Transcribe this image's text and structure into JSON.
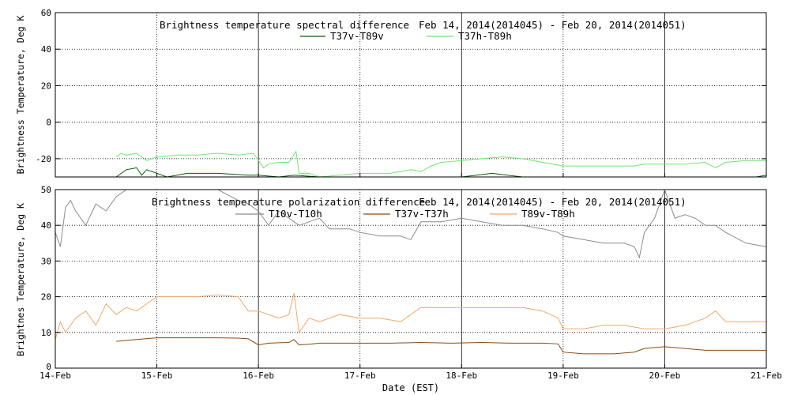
{
  "xlabel": "Date (EST)",
  "colors": {
    "T37v-T89v": "#0a5a0a",
    "T37h-T89h": "#6ee86e",
    "T10v-T10h": "#8c8c8c",
    "T37v-T37h": "#8a4a10",
    "T89v-T89h": "#f0a868"
  },
  "chart_data": [
    {
      "type": "line",
      "title": "Brightness temperature spectral difference",
      "date_range": "Feb 14, 2014(2014045) - Feb 20, 2014(2014051)",
      "ylabel": "Brightness Temperature, Deg K",
      "xlabel": "",
      "xlim": [
        14,
        21
      ],
      "ylim": [
        -30,
        60
      ],
      "grid": true,
      "legend": "top-center",
      "x_ticks": [
        "14-Feb",
        "15-Feb",
        "16-Feb",
        "17-Feb",
        "18-Feb",
        "19-Feb",
        "20-Feb",
        "21-Feb"
      ],
      "y_ticks": [
        -20,
        0,
        20,
        40,
        60
      ],
      "series": [
        {
          "name": "T37v-T89v",
          "x": [
            14.6,
            14.7,
            14.8,
            14.85,
            14.9,
            15.1,
            15.3,
            15.6,
            15.9,
            16.0,
            16.2,
            16.35,
            16.6,
            17.0,
            17.4,
            17.7,
            18.0,
            18.3,
            18.6,
            18.9,
            19.2,
            19.5,
            19.8,
            20.0,
            20.3,
            20.6,
            20.9,
            21.0
          ],
          "values": [
            -30,
            -26,
            -25,
            -29,
            -26,
            -30,
            -28,
            -28,
            -29,
            -29,
            -30,
            -29,
            -30,
            -30,
            -30,
            -30,
            -30,
            -28,
            -30,
            -30,
            -30,
            -30,
            -30,
            -30,
            -30,
            -30,
            -30,
            -29
          ]
        },
        {
          "name": "T37h-T89h",
          "x": [
            14.6,
            14.65,
            14.7,
            14.8,
            14.9,
            15.0,
            15.2,
            15.4,
            15.6,
            15.8,
            15.95,
            16.05,
            16.1,
            16.2,
            16.3,
            16.37,
            16.4,
            16.5,
            16.6,
            16.8,
            17.0,
            17.3,
            17.5,
            17.6,
            17.7,
            17.8,
            18.0,
            18.2,
            18.4,
            18.6,
            18.8,
            19.0,
            19.1,
            19.2,
            19.3,
            19.5,
            19.7,
            19.8,
            20.0,
            20.2,
            20.4,
            20.5,
            20.6,
            20.8,
            21.0
          ],
          "values": [
            -19,
            -17,
            -18,
            -17,
            -21,
            -19,
            -18,
            -18,
            -17,
            -18,
            -17,
            -25,
            -23,
            -22,
            -22,
            -16,
            -28,
            -28,
            -30,
            -29,
            -28,
            -28,
            -26,
            -27,
            -24,
            -22,
            -21,
            -20,
            -19,
            -20,
            -22,
            -24,
            -24,
            -24,
            -24,
            -24,
            -24,
            -23,
            -23,
            -23,
            -22,
            -25,
            -22,
            -21,
            -21
          ]
        }
      ]
    },
    {
      "type": "line",
      "title": "Brightness temperature polarization difference",
      "date_range": "Feb 14, 2014(2014045) - Feb 20, 2014(2014051)",
      "ylabel": "Brightnes Temperature, Deg K",
      "xlabel": "Date (EST)",
      "xlim": [
        14,
        21
      ],
      "ylim": [
        0,
        50
      ],
      "grid": true,
      "legend": "top-center",
      "x_ticks": [
        "14-Feb",
        "15-Feb",
        "16-Feb",
        "17-Feb",
        "18-Feb",
        "19-Feb",
        "20-Feb",
        "21-Feb"
      ],
      "y_ticks": [
        0,
        10,
        20,
        30,
        40,
        50
      ],
      "series": [
        {
          "name": "T10v-T10h",
          "x": [
            14.0,
            14.05,
            14.1,
            14.15,
            14.2,
            14.3,
            14.4,
            14.5,
            14.6,
            14.7,
            14.8,
            14.9,
            15.0,
            15.1,
            15.2,
            15.4,
            15.6,
            15.8,
            15.9,
            16.0,
            16.1,
            16.2,
            16.3,
            16.4,
            16.5,
            16.6,
            16.7,
            16.9,
            17.0,
            17.2,
            17.4,
            17.5,
            17.6,
            17.8,
            18.0,
            18.2,
            18.4,
            18.6,
            18.8,
            18.95,
            19.0,
            19.2,
            19.4,
            19.6,
            19.7,
            19.75,
            19.8,
            19.9,
            20.0,
            20.1,
            20.2,
            20.3,
            20.4,
            20.5,
            20.6,
            20.8,
            21.0
          ],
          "values": [
            38,
            34,
            45,
            47,
            44,
            40,
            46,
            44,
            48,
            50,
            50,
            50,
            50,
            50,
            50,
            50,
            50,
            47,
            46,
            44,
            40,
            44,
            42,
            40,
            41,
            42,
            39,
            39,
            38,
            37,
            37,
            36,
            41,
            41,
            42,
            41,
            40,
            40,
            39,
            38,
            37,
            36,
            35,
            35,
            34,
            31,
            38,
            42,
            50,
            42,
            43,
            42,
            40,
            40,
            38,
            35,
            34
          ]
        },
        {
          "name": "T37v-T37h",
          "x": [
            14.6,
            14.8,
            15.0,
            15.2,
            15.4,
            15.6,
            15.8,
            15.9,
            16.0,
            16.1,
            16.2,
            16.3,
            16.35,
            16.4,
            16.5,
            16.6,
            16.8,
            17.0,
            17.3,
            17.6,
            17.9,
            18.2,
            18.5,
            18.8,
            18.95,
            19.0,
            19.2,
            19.5,
            19.7,
            19.8,
            20.0,
            20.2,
            20.4,
            20.6,
            20.8,
            21.0
          ],
          "values": [
            7.5,
            8,
            8.5,
            8.5,
            8.5,
            8.5,
            8.4,
            8.2,
            6.5,
            7,
            7.1,
            7.2,
            8,
            6.5,
            6.7,
            7,
            7,
            7,
            7,
            7.2,
            7,
            7.2,
            7,
            7,
            6.8,
            4.5,
            4,
            4,
            4.5,
            5.5,
            6,
            5.5,
            5,
            5,
            5,
            5
          ]
        },
        {
          "name": "T89v-T89h",
          "x": [
            14.0,
            14.05,
            14.1,
            14.2,
            14.3,
            14.4,
            14.5,
            14.6,
            14.7,
            14.8,
            14.9,
            15.0,
            15.1,
            15.2,
            15.4,
            15.6,
            15.8,
            15.9,
            16.0,
            16.1,
            16.2,
            16.3,
            16.35,
            16.4,
            16.5,
            16.6,
            16.8,
            17.0,
            17.2,
            17.4,
            17.5,
            17.6,
            17.8,
            18.0,
            18.2,
            18.4,
            18.6,
            18.8,
            18.95,
            19.0,
            19.2,
            19.4,
            19.6,
            19.8,
            20.0,
            20.2,
            20.4,
            20.5,
            20.6,
            20.8,
            21.0
          ],
          "values": [
            8,
            13,
            10,
            14,
            16,
            12,
            18,
            15,
            17,
            16,
            18,
            20,
            20,
            20,
            20,
            20.5,
            20,
            16,
            16,
            15,
            14,
            15,
            21,
            10,
            14,
            13,
            15,
            14,
            14,
            13,
            15,
            17,
            17,
            17,
            17,
            17,
            17,
            16,
            14,
            11,
            11,
            12,
            12,
            11,
            11,
            12,
            14,
            16,
            13,
            13,
            13
          ]
        }
      ]
    }
  ]
}
